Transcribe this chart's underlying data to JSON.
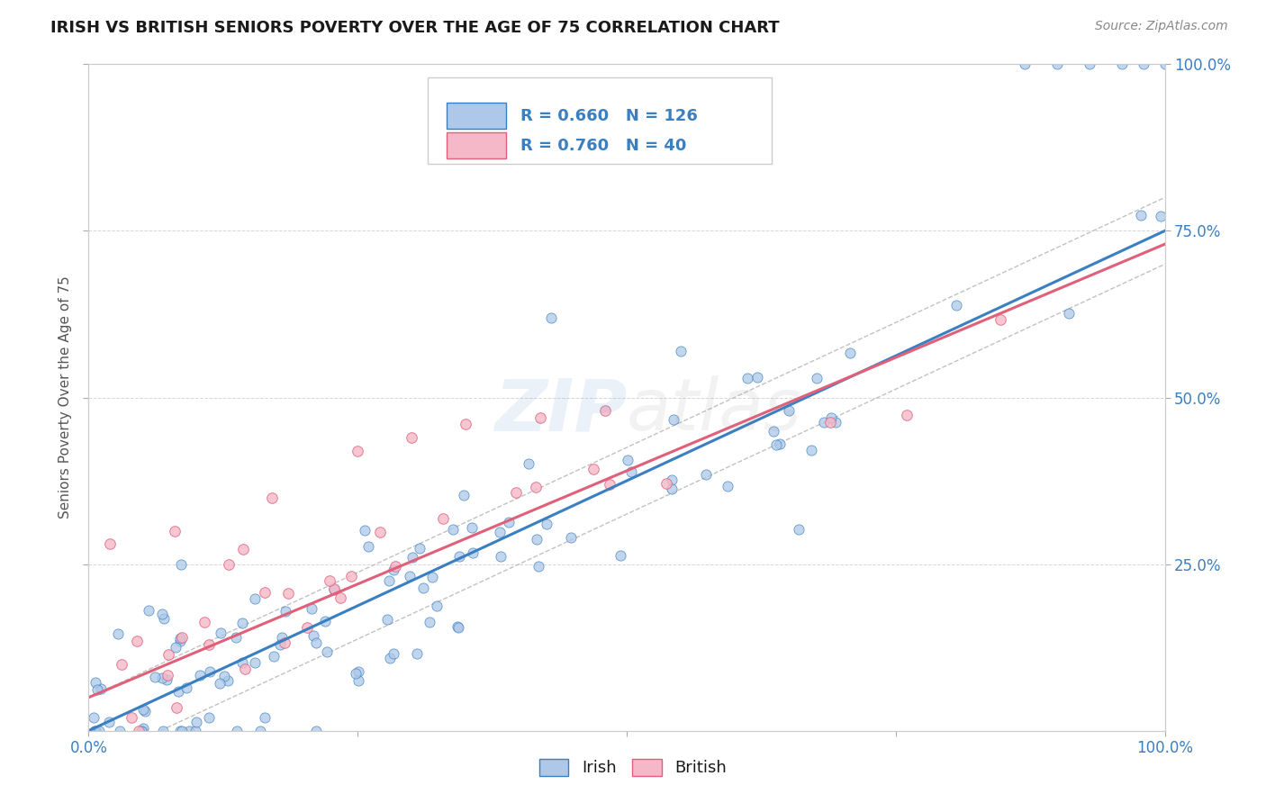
{
  "title": "IRISH VS BRITISH SENIORS POVERTY OVER THE AGE OF 75 CORRELATION CHART",
  "source": "Source: ZipAtlas.com",
  "ylabel": "Seniors Poverty Over the Age of 75",
  "irish_R": 0.66,
  "irish_N": 126,
  "british_R": 0.76,
  "british_N": 40,
  "irish_color": "#adc8e8",
  "british_color": "#f5b8c8",
  "irish_line_color": "#3a7fc1",
  "british_line_color": "#e0607a",
  "background_color": "#ffffff",
  "grid_color": "#cccccc",
  "text_blue": "#3a7fc1",
  "title_color": "#1a1a1a",
  "source_color": "#888888",
  "ylabel_color": "#555555",
  "watermark_color": "#3a7fc1",
  "irish_line_intercept": 0.0,
  "irish_line_slope": 0.75,
  "british_line_intercept": 0.05,
  "british_line_slope": 0.68
}
